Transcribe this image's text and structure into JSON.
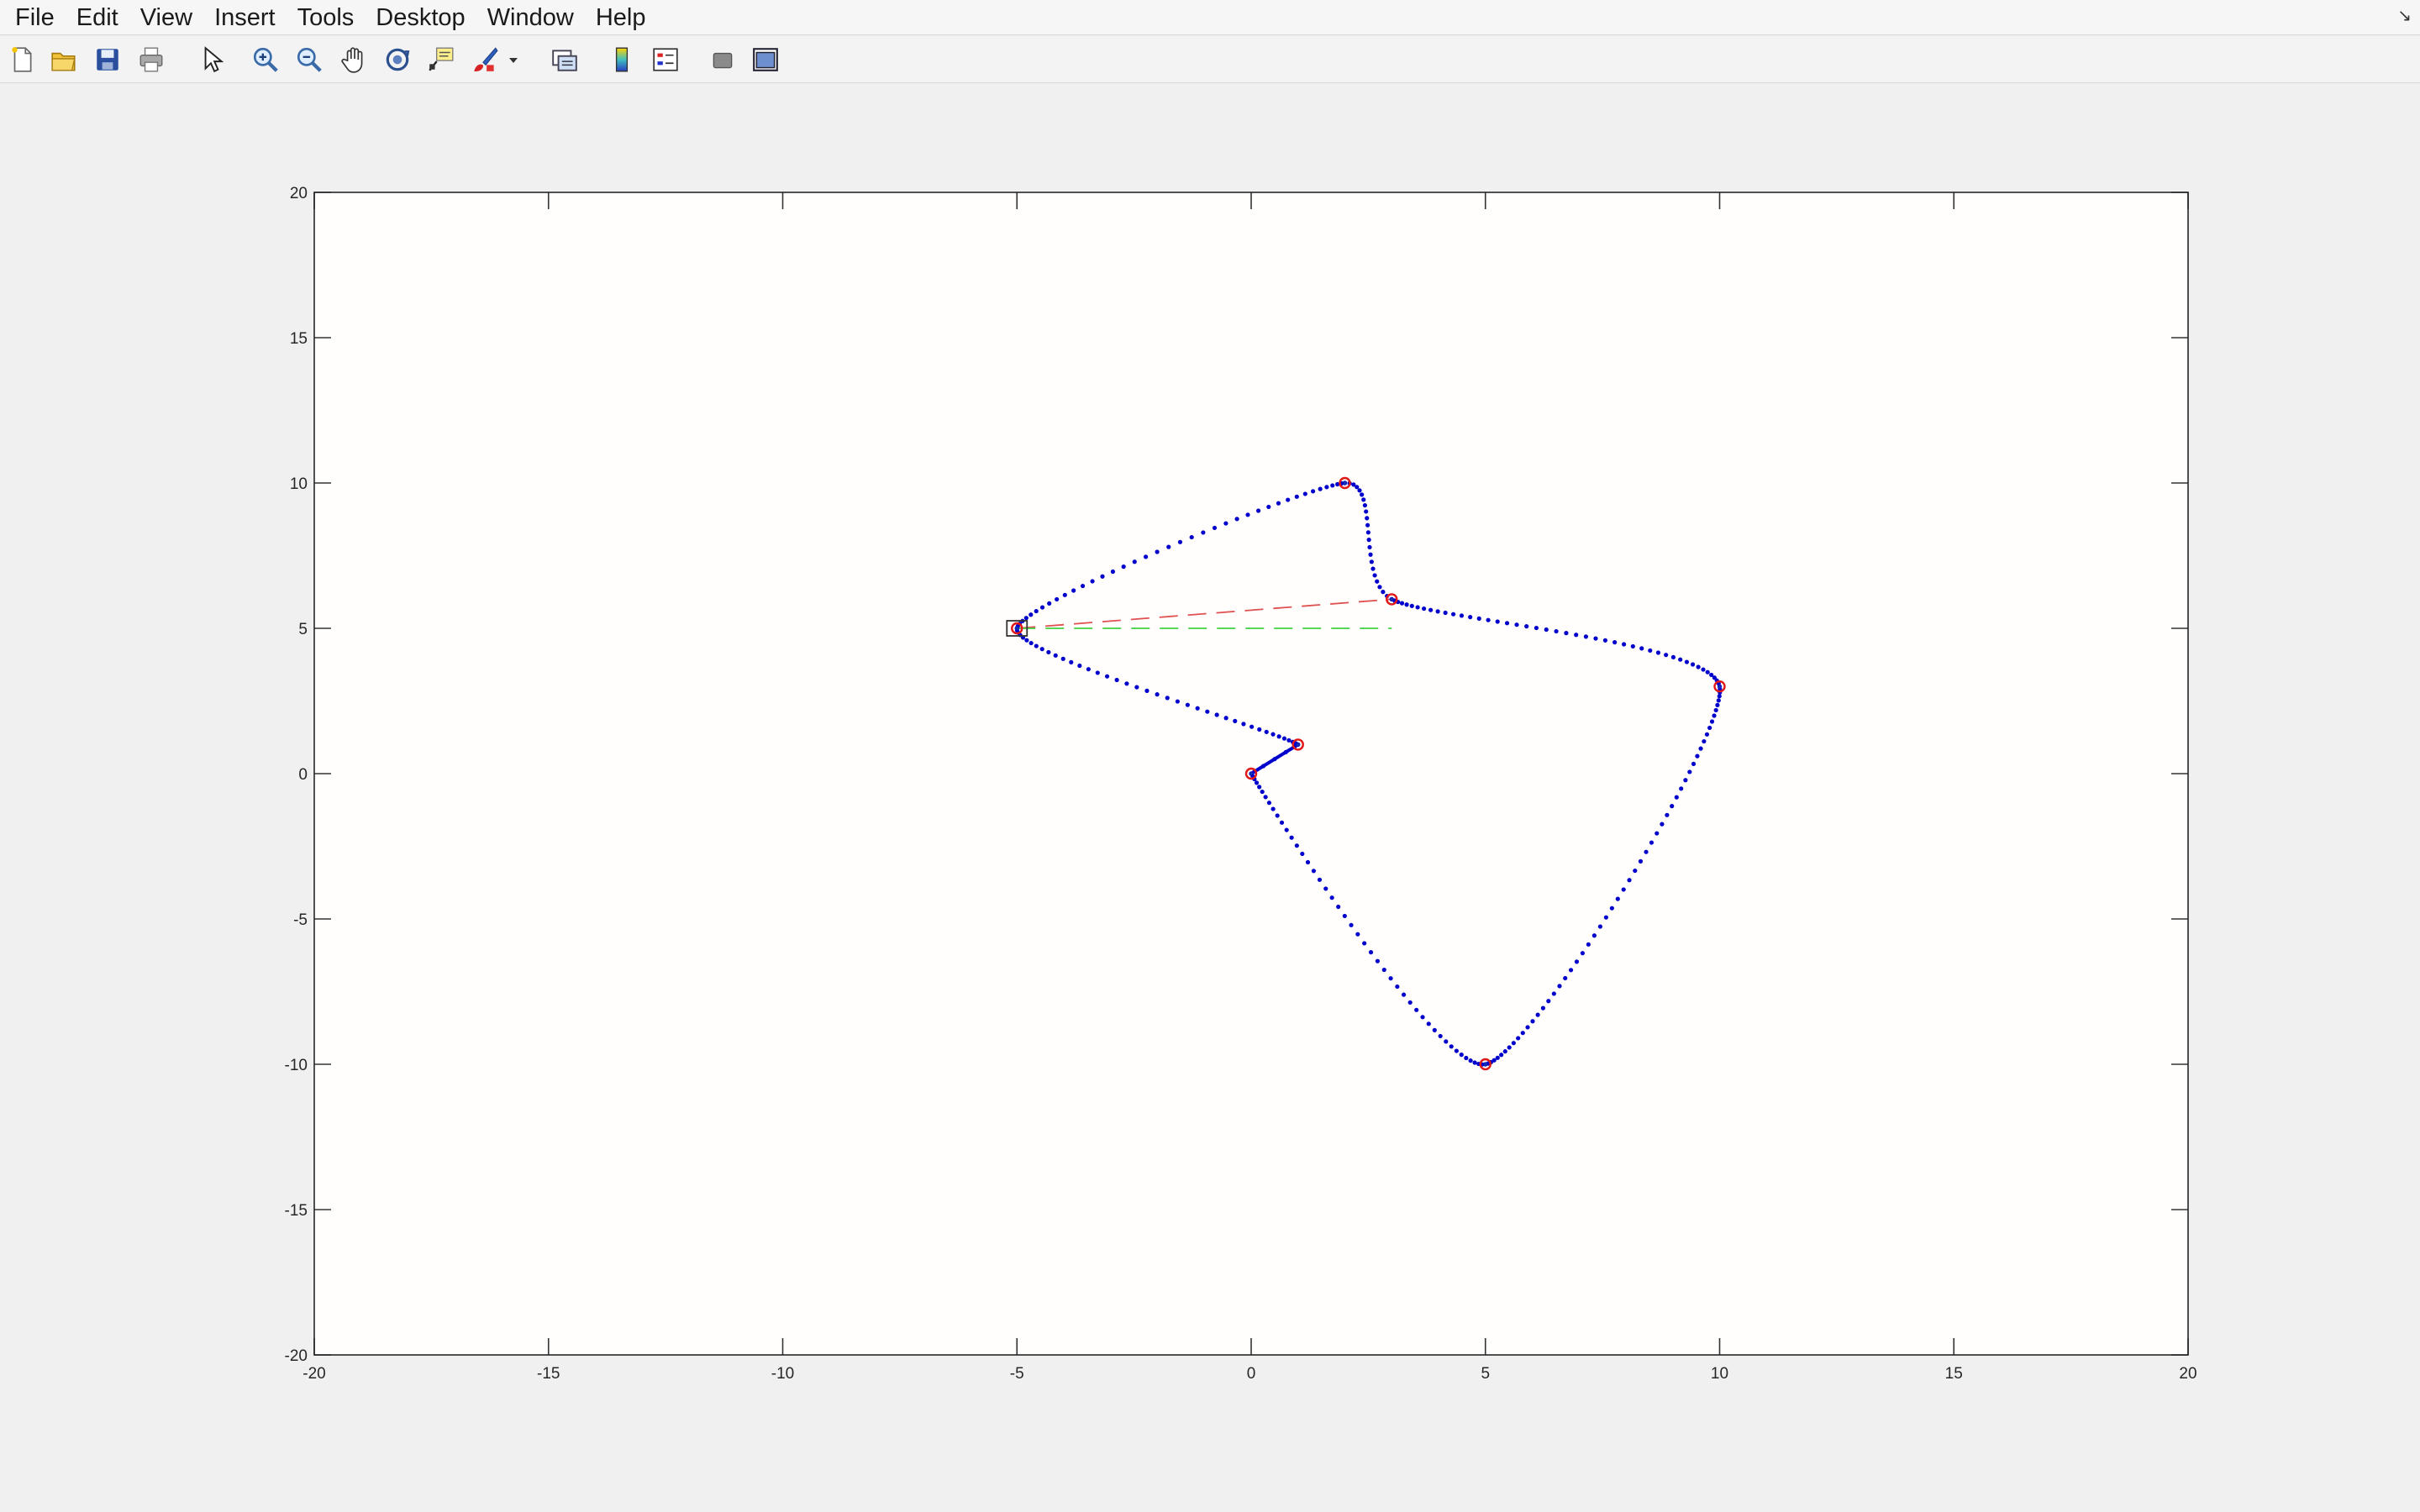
{
  "menu": {
    "items": [
      "File",
      "Edit",
      "View",
      "Insert",
      "Tools",
      "Desktop",
      "Window",
      "Help"
    ]
  },
  "toolbar": {
    "buttons": [
      {
        "name": "new-figure-icon"
      },
      {
        "name": "open-file-icon"
      },
      {
        "name": "save-icon"
      },
      {
        "name": "print-icon"
      },
      {
        "name": "edit-plot-arrow-icon"
      },
      {
        "name": "zoom-in-icon"
      },
      {
        "name": "zoom-out-icon"
      },
      {
        "name": "pan-hand-icon"
      },
      {
        "name": "rotate-3d-icon"
      },
      {
        "name": "data-cursor-icon"
      },
      {
        "name": "brush-icon"
      },
      {
        "name": "brush-dropdown-icon"
      },
      {
        "name": "link-plot-icon"
      },
      {
        "name": "insert-colorbar-icon"
      },
      {
        "name": "insert-legend-icon"
      },
      {
        "name": "hide-plot-tools-icon"
      },
      {
        "name": "show-plot-tools-icon"
      }
    ]
  },
  "chart_data": {
    "type": "scatter",
    "title": "",
    "xlabel": "",
    "ylabel": "",
    "xlim": [
      -20,
      20
    ],
    "ylim": [
      -20,
      20
    ],
    "xticks": [
      -20,
      -15,
      -10,
      -5,
      0,
      5,
      10,
      15,
      20
    ],
    "yticks": [
      -20,
      -15,
      -10,
      -5,
      0,
      5,
      10,
      15,
      20
    ],
    "grid": false,
    "waypoints": {
      "marker": "red-circle",
      "x": [
        -5,
        2,
        3,
        10,
        5,
        0,
        1
      ],
      "y": [
        5,
        10,
        6,
        3,
        -10,
        0,
        1
      ]
    },
    "start_marker": {
      "marker": "black-square",
      "x": -5,
      "y": 5
    },
    "path": {
      "style": "blue-dotted",
      "color": "#0000cc",
      "order_x": [
        -5,
        2,
        3,
        10,
        5,
        0,
        1,
        -5
      ],
      "order_y": [
        5,
        10,
        6,
        3,
        -10,
        0,
        1,
        5
      ]
    },
    "red_dashed_line": {
      "color": "#e05050",
      "x": [
        -5,
        3
      ],
      "y": [
        5,
        6
      ]
    },
    "green_dashed_line": {
      "color": "#40d040",
      "x": [
        -5,
        3
      ],
      "y": [
        5,
        5
      ]
    }
  }
}
